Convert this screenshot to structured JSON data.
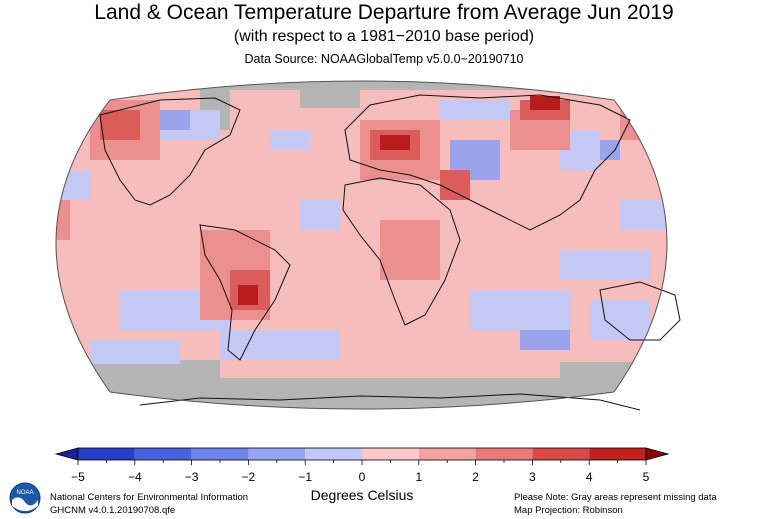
{
  "header": {
    "title": "Land & Ocean Temperature Departure from Average Jun 2019",
    "subtitle": "(with respect to a 1981−2010 base period)",
    "source": "Data Source: NOAAGlobalTemp v5.0.0−20190710"
  },
  "colorbar": {
    "ticks": [
      "−5",
      "−4",
      "−3",
      "−2",
      "−1",
      "0",
      "1",
      "2",
      "3",
      "4",
      "5"
    ],
    "unit_label": "Degrees Celsius",
    "colors": [
      "#1d1d9e",
      "#2b3cc9",
      "#4a62dd",
      "#6f84e8",
      "#98a6f0",
      "#c3c8f7",
      "#f9c9c9",
      "#f3a3a3",
      "#e87a7a",
      "#d94a4a",
      "#c21f1f",
      "#8b0000"
    ]
  },
  "footer": {
    "left_line1": "National Centers for Environmental Information",
    "left_line2": "GHCNM v4.0.1.20190708.qfe",
    "right_line1": "Please Note: Gray areas represent missing data",
    "right_line2": "Map Projection: Robinson"
  },
  "logo_text": "NOAA",
  "map_colors": {
    "missing": "#b4b4b4",
    "warm_light": "#f6b8b8",
    "warm_mid": "#ec8f8f",
    "warm_strong": "#dc5c5c",
    "warm_hot": "#b81c1c",
    "cool_light": "#c4c8f5",
    "cool_mid": "#9aa3ec"
  }
}
